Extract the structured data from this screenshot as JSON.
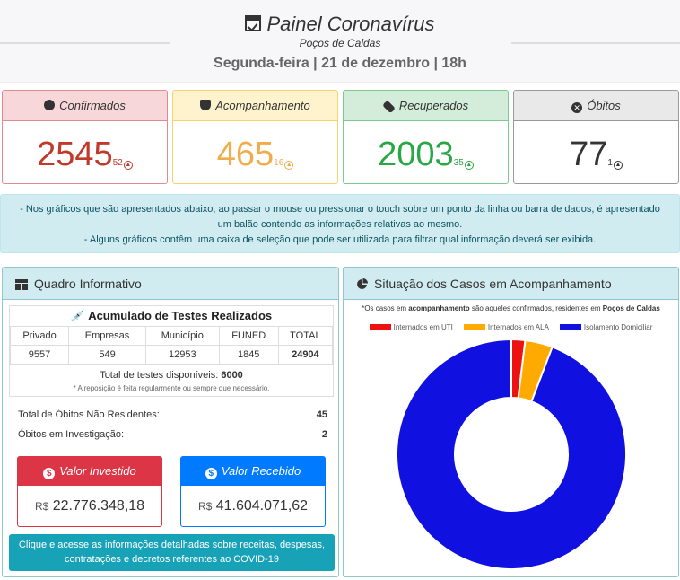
{
  "header": {
    "title": "Painel Coronavírus",
    "subtitle": "Poços de Caldas",
    "date": "Segunda-feira | 21 de dezembro | 18h"
  },
  "cards": [
    {
      "label": "Confirmados",
      "value": "2545",
      "delta": "52",
      "icon": "check-circle-icon",
      "color": "#c0392b",
      "bg": "#f8d7da",
      "border": "#e08a93"
    },
    {
      "label": "Acompanhamento",
      "value": "465",
      "delta": "16",
      "icon": "shield-check-icon",
      "color": "#f0ad4e",
      "bg": "#fff3cd",
      "border": "#f5d46a"
    },
    {
      "label": "Recuperados",
      "value": "2003",
      "delta": "35",
      "icon": "band-aid-icon",
      "color": "#28a745",
      "bg": "#d4edda",
      "border": "#7ec98d"
    },
    {
      "label": "Óbitos",
      "value": "77",
      "delta": "1",
      "icon": "x-circle-icon",
      "color": "#333333",
      "bg": "#e9e9e9",
      "border": "#999999"
    }
  ],
  "info": {
    "line1": "- Nos gráficos que são apresentados abaixo, ao passar o mouse ou pressionar o touch sobre um ponto da linha ou barra de dados, é apresentado um balão contendo as informações relativas ao mesmo.",
    "line2": "- Alguns gráficos contêm uma caixa de seleção que pode ser utilizada para filtrar qual informação deverá ser exibida."
  },
  "quadro": {
    "title": "Quadro Informativo",
    "tests_title": "Acumulado de Testes Realizados",
    "columns": [
      "Privado",
      "Empresas",
      "Município",
      "FUNED",
      "TOTAL"
    ],
    "values": [
      "9557",
      "549",
      "12953",
      "1845",
      "24904"
    ],
    "available_label": "Total de testes disponíveis:",
    "available_value": "6000",
    "note": "* A reposição é feita regularmente ou sempre que necessário.",
    "obitos_nr_label": "Total de Óbitos Não Residentes:",
    "obitos_nr_value": "45",
    "obitos_inv_label": "Óbitos em Investigação:",
    "obitos_inv_value": "2",
    "invested_label": "Valor Investido",
    "invested_currency": "R$",
    "invested_value": "22.776.348,18",
    "received_label": "Valor Recebido",
    "received_currency": "R$",
    "received_value": "41.604.071,62",
    "cta_line1": "Clique e acesse as informações detalhadas sobre receitas, despesas,",
    "cta_line2": "contratações e decretos referentes ao COVID-19"
  },
  "situacao": {
    "title": "Situação dos Casos em Acompanhamento",
    "note_a": "*Os casos em ",
    "note_b": "acompanhamento",
    "note_c": " são aqueles confirmados, residentes em ",
    "note_d": "Poços de Caldas"
  },
  "chart_data": {
    "type": "pie",
    "variant": "doughnut",
    "legend_position": "top",
    "categories": [
      "Internados em UTI",
      "Internados em ALA",
      "Isolamento Domiciliar"
    ],
    "values": [
      9,
      18,
      438
    ],
    "colors": [
      "#ee1111",
      "#ffaa00",
      "#1010e0"
    ]
  }
}
